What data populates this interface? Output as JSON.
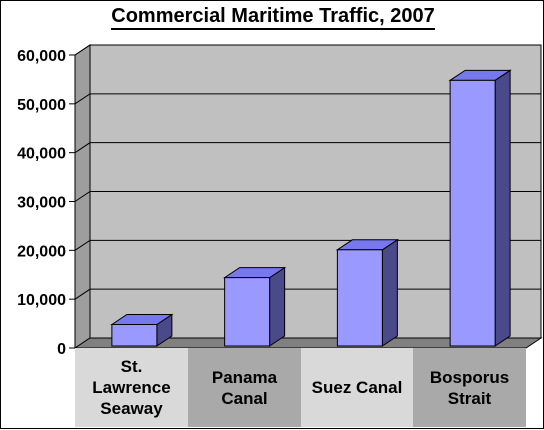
{
  "chart_data": {
    "type": "bar",
    "title": "Commercial Maritime Traffic, 2007",
    "categories": [
      [
        "St.",
        "Lawrence",
        "Seaway"
      ],
      [
        "Panama",
        "Canal"
      ],
      [
        "Suez Canal"
      ],
      [
        "Bosporus",
        "Strait"
      ]
    ],
    "values": [
      4400,
      14000,
      19700,
      54400
    ],
    "ylim": [
      0,
      60000
    ],
    "yticks": [
      "0",
      "10,000",
      "20,000",
      "30,000",
      "40,000",
      "50,000",
      "60,000"
    ],
    "xlabel": "",
    "ylabel": "",
    "grid": true,
    "style": "3d-column"
  },
  "colors": {
    "bar_front": "#9999ff",
    "bar_top": "#7777ee",
    "bar_side": "#4a4a8a",
    "plot_back": "#c0c0c0",
    "plot_side_wall": "#9e9e9e",
    "plot_floor": "#808080",
    "cat_band_light": "#d9d9d9",
    "cat_band_dark": "#a9a9a9"
  }
}
